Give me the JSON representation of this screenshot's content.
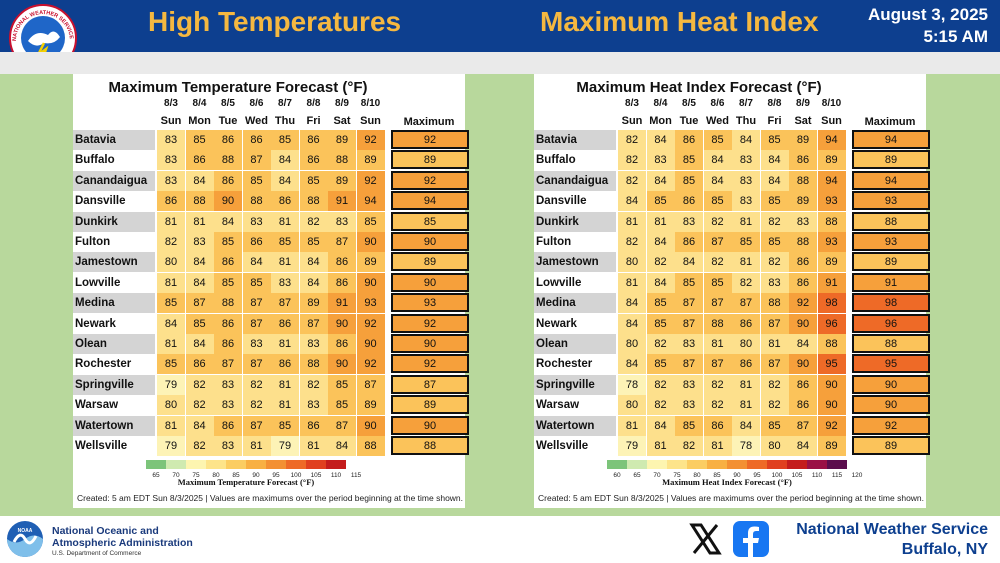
{
  "header": {
    "left_title": "High Temperatures",
    "right_title": "Maximum Heat Index",
    "date": "August 3, 2025",
    "time": "5:15 AM",
    "logo_text": "NATIONAL WEATHER SERVICE"
  },
  "dates": [
    "8/3",
    "8/4",
    "8/5",
    "8/6",
    "8/7",
    "8/8",
    "8/9",
    "8/10"
  ],
  "days": [
    "Sun",
    "Mon",
    "Tue",
    "Wed",
    "Thu",
    "Fri",
    "Sat",
    "Sun"
  ],
  "max_header": "Maximum",
  "locations": [
    "Batavia",
    "Buffalo",
    "Canandaigua",
    "Dansville",
    "Dunkirk",
    "Fulton",
    "Jamestown",
    "Lowville",
    "Medina",
    "Newark",
    "Olean",
    "Rochester",
    "Springville",
    "Warsaw",
    "Watertown",
    "Wellsville"
  ],
  "temp_panel": {
    "title": "Maximum Temperature Forecast (°F)",
    "values": [
      [
        83,
        85,
        86,
        86,
        85,
        86,
        89,
        92
      ],
      [
        83,
        86,
        88,
        87,
        84,
        86,
        88,
        89
      ],
      [
        83,
        84,
        86,
        85,
        84,
        85,
        89,
        92
      ],
      [
        86,
        88,
        90,
        88,
        86,
        88,
        91,
        94
      ],
      [
        81,
        81,
        84,
        83,
        81,
        82,
        83,
        85
      ],
      [
        82,
        83,
        85,
        86,
        85,
        85,
        87,
        90
      ],
      [
        80,
        84,
        86,
        84,
        81,
        84,
        86,
        89
      ],
      [
        81,
        84,
        85,
        85,
        83,
        84,
        86,
        90
      ],
      [
        85,
        87,
        88,
        87,
        87,
        89,
        91,
        93
      ],
      [
        84,
        85,
        86,
        87,
        86,
        87,
        90,
        92
      ],
      [
        81,
        84,
        86,
        83,
        81,
        83,
        86,
        90
      ],
      [
        85,
        86,
        87,
        87,
        86,
        88,
        90,
        92
      ],
      [
        79,
        82,
        83,
        82,
        81,
        82,
        85,
        87
      ],
      [
        80,
        82,
        83,
        82,
        81,
        83,
        85,
        89
      ],
      [
        81,
        84,
        86,
        87,
        85,
        86,
        87,
        90
      ],
      [
        79,
        82,
        83,
        81,
        79,
        81,
        84,
        88
      ]
    ],
    "maximum": [
      92,
      89,
      92,
      94,
      85,
      90,
      89,
      90,
      93,
      92,
      90,
      92,
      87,
      89,
      90,
      88
    ],
    "legend_ticks": [
      "65",
      "70",
      "75",
      "80",
      "85",
      "90",
      "95",
      "100",
      "105",
      "110",
      "115"
    ],
    "legend_label": "Maximum Temperature Forecast (°F)",
    "legend_colors": [
      "#7cc47a",
      "#cfeab0",
      "#fdf5b0",
      "#fde48a",
      "#fbcd62",
      "#f8b043",
      "#f39033",
      "#ee6a27",
      "#e0401f",
      "#c41c1c"
    ],
    "note": "Created: 5 am EDT Sun 8/3/2025  |  Values are maximums over the period beginning at the time shown."
  },
  "heat_panel": {
    "title": "Maximum Heat Index Forecast (°F)",
    "values": [
      [
        82,
        84,
        86,
        85,
        84,
        85,
        89,
        94
      ],
      [
        82,
        83,
        85,
        84,
        83,
        84,
        86,
        89
      ],
      [
        82,
        84,
        85,
        84,
        83,
        84,
        88,
        94
      ],
      [
        84,
        85,
        86,
        85,
        83,
        85,
        89,
        93
      ],
      [
        81,
        81,
        83,
        82,
        81,
        82,
        83,
        88
      ],
      [
        82,
        84,
        86,
        87,
        85,
        85,
        88,
        93
      ],
      [
        80,
        82,
        84,
        82,
        81,
        82,
        86,
        89
      ],
      [
        81,
        84,
        85,
        85,
        82,
        83,
        86,
        91
      ],
      [
        84,
        85,
        87,
        87,
        87,
        88,
        92,
        98
      ],
      [
        84,
        85,
        87,
        88,
        86,
        87,
        90,
        96
      ],
      [
        80,
        82,
        83,
        81,
        80,
        81,
        84,
        88
      ],
      [
        84,
        85,
        87,
        87,
        86,
        87,
        90,
        95
      ],
      [
        78,
        82,
        83,
        82,
        81,
        82,
        86,
        90
      ],
      [
        80,
        82,
        83,
        82,
        81,
        82,
        86,
        90
      ],
      [
        81,
        84,
        85,
        86,
        84,
        85,
        87,
        92
      ],
      [
        79,
        81,
        82,
        81,
        78,
        80,
        84,
        89
      ]
    ],
    "maximum": [
      94,
      89,
      94,
      93,
      88,
      93,
      89,
      91,
      98,
      96,
      88,
      95,
      90,
      90,
      92,
      89
    ],
    "legend_ticks": [
      "60",
      "65",
      "70",
      "75",
      "80",
      "85",
      "90",
      "95",
      "100",
      "105",
      "110",
      "115",
      "120"
    ],
    "legend_label": "Maximum Heat Index Forecast (°F)",
    "legend_colors": [
      "#7cc47a",
      "#cfeab0",
      "#fdf5b0",
      "#fde48a",
      "#fbcd62",
      "#f8b043",
      "#f39033",
      "#ee6a27",
      "#e0401f",
      "#c41c1c",
      "#9a1045",
      "#5b0d4d"
    ],
    "note": "Created: 5 am EDT Sun 8/3/2025  |  Values are maximums over the period beginning at the time shown."
  },
  "footer": {
    "noaa_line1": "National Oceanic and",
    "noaa_line2": "Atmospheric Administration",
    "noaa_sub": "U.S. Department of Commerce",
    "noaa_logo_text": "NOAA",
    "x_icon": "x-logo-icon",
    "facebook_icon": "facebook-logo-icon",
    "nws_line1": "National Weather Service",
    "nws_line2": "Buffalo, NY"
  }
}
